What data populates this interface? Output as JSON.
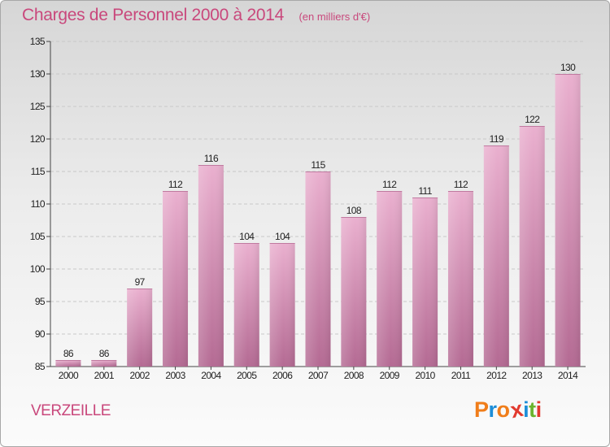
{
  "chart_data": {
    "type": "bar",
    "title": "Charges de Personnel 2000 à 2014",
    "subtitle": "(en milliers d'€)",
    "categories": [
      "2000",
      "2001",
      "2002",
      "2003",
      "2004",
      "2005",
      "2006",
      "2007",
      "2008",
      "2009",
      "2010",
      "2011",
      "2012",
      "2013",
      "2014"
    ],
    "values": [
      86,
      86,
      97,
      112,
      116,
      104,
      104,
      115,
      108,
      112,
      111,
      112,
      119,
      122,
      130
    ],
    "ylim": [
      85,
      135
    ],
    "yticks": [
      85,
      90,
      95,
      100,
      105,
      110,
      115,
      120,
      125,
      130,
      135
    ],
    "grid": true,
    "bar_color": "#d98ab4",
    "xlabel": "",
    "ylabel": ""
  },
  "footer": {
    "commune": "VERZEILLE",
    "logo_letters": [
      "P",
      "r",
      "o",
      "x",
      "i",
      "t",
      "i"
    ],
    "logo_colors": [
      "#f07d1a",
      "#1d8ed8",
      "#f07d1a",
      "#e23a2f",
      "#1d8ed8",
      "#6ab42d",
      "#e23a2f"
    ]
  }
}
